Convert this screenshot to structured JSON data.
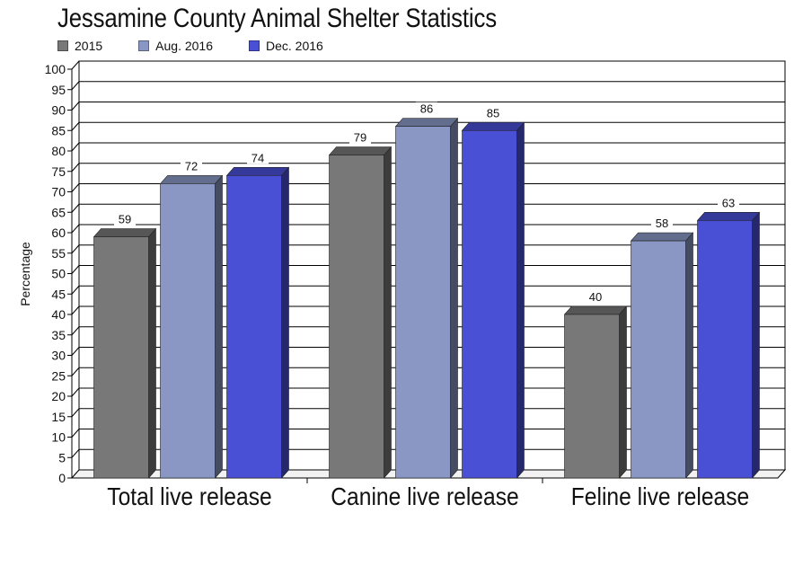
{
  "chart_data": {
    "type": "bar",
    "title": "Jessamine County Animal Shelter Statistics",
    "ylabel": "Percentage",
    "xlabel": "",
    "ylim": [
      0,
      100
    ],
    "ytick_step": 5,
    "grid": true,
    "legend_position": "top-left",
    "categories": [
      "Total live release",
      "Canine live release",
      "Feline live release"
    ],
    "series": [
      {
        "name": "2015",
        "values": [
          59,
          79,
          40
        ],
        "color": "#787878"
      },
      {
        "name": "Aug. 2016",
        "values": [
          72,
          86,
          58
        ],
        "color": "#8a97c4"
      },
      {
        "name": "Dec. 2016",
        "values": [
          74,
          85,
          63
        ],
        "color": "#4a50d6"
      }
    ]
  }
}
